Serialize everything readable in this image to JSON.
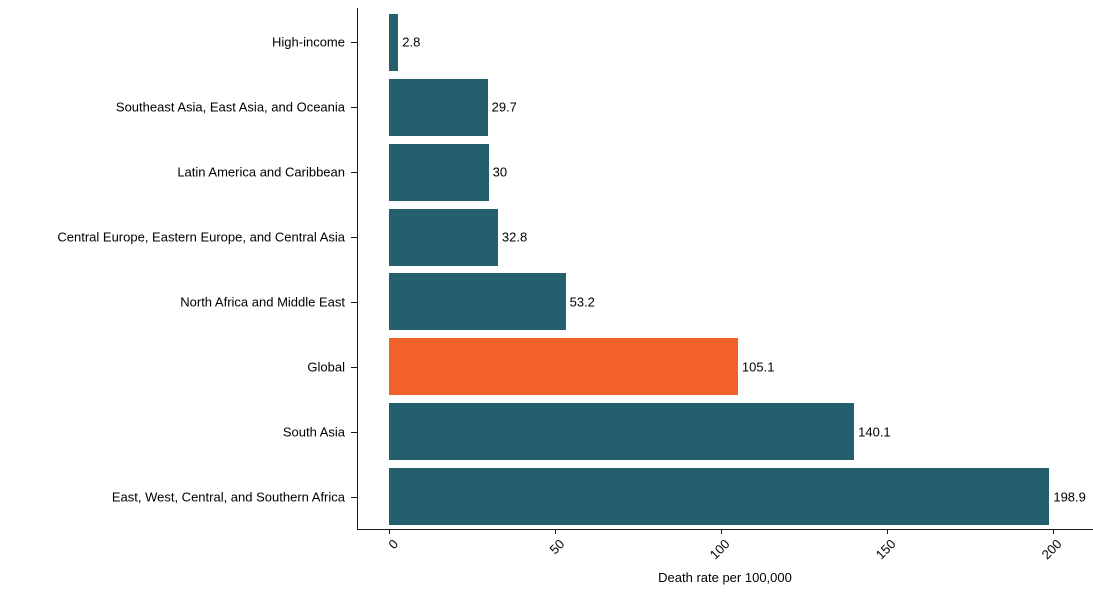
{
  "chart_data": {
    "type": "bar",
    "orientation": "horizontal",
    "title": "",
    "xlabel": "Death rate per 100,000",
    "ylabel": "",
    "categories": [
      "High-income",
      "Southeast Asia, East Asia, and Oceania",
      "Latin America and Caribbean",
      "Central Europe, Eastern Europe, and Central Asia",
      "North Africa and Middle East",
      "Global",
      "South Asia",
      "East, West, Central, and Southern Africa"
    ],
    "values": [
      2.8,
      29.7,
      30,
      32.8,
      53.2,
      105.1,
      140.1,
      198.9
    ],
    "value_labels": [
      "2.8",
      "29.7",
      "30",
      "32.8",
      "53.2",
      "105.1",
      "140.1",
      "198.9"
    ],
    "bar_colors": [
      "#245f6e",
      "#245f6e",
      "#245f6e",
      "#245f6e",
      "#245f6e",
      "#f16129",
      "#245f6e",
      "#245f6e"
    ],
    "highlighted_category": "Global",
    "xlim": [
      0,
      212
    ],
    "x_ticks": [
      0,
      50,
      100,
      150,
      200
    ],
    "x_tick_labels": [
      "0",
      "50",
      "100",
      "150",
      "200"
    ],
    "x_tick_angle_deg": 45,
    "grid": false,
    "legend_position": "none",
    "colors": {
      "default_bar": "#245f6e",
      "highlight_bar": "#f16129",
      "axis": "#1a1a1a",
      "text": "#000000",
      "background": "#ffffff"
    }
  }
}
